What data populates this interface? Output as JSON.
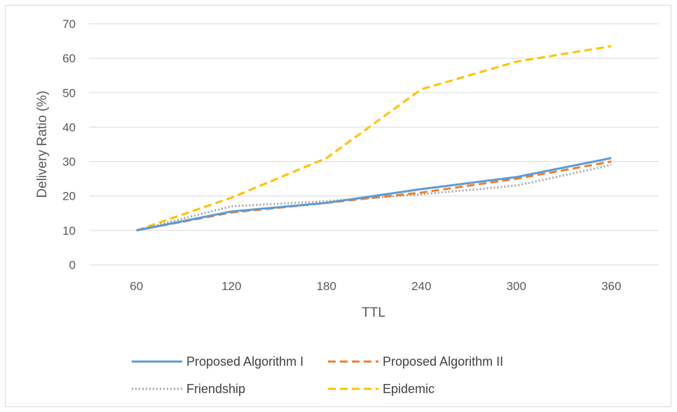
{
  "chart_data": {
    "type": "line",
    "title": "",
    "xlabel": "TTL",
    "ylabel": "Delivery Ratio (%)",
    "categories": [
      "60",
      "120",
      "180",
      "240",
      "300",
      "360"
    ],
    "yticks": [
      "0",
      "10",
      "20",
      "30",
      "40",
      "50",
      "60",
      "70"
    ],
    "ylim": [
      0,
      70
    ],
    "grid": true,
    "legend_position": "bottom",
    "series": [
      {
        "name": "Proposed Algorithm I",
        "values": [
          10,
          15.5,
          18,
          22,
          25.5,
          31
        ],
        "color": "#5b9bd5",
        "dash": "solid"
      },
      {
        "name": "Proposed Algorithm II",
        "values": [
          10,
          15.2,
          18,
          21,
          25,
          30
        ],
        "color": "#ed7d31",
        "dash": "dash"
      },
      {
        "name": "Friendship",
        "values": [
          10,
          17,
          18.5,
          20.5,
          23,
          29
        ],
        "color": "#a5a5a5",
        "dash": "dot"
      },
      {
        "name": "Epidemic",
        "values": [
          10,
          19.5,
          31,
          51,
          59,
          63.5
        ],
        "color": "#ffc000",
        "dash": "dash"
      }
    ]
  }
}
